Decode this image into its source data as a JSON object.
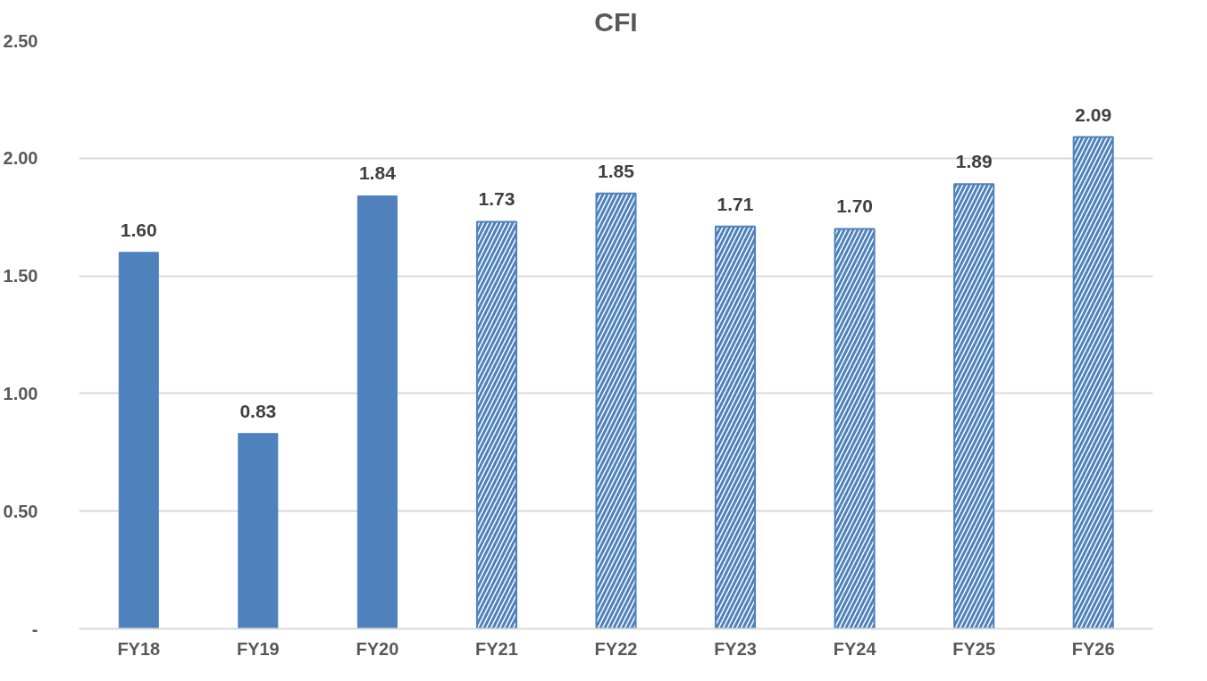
{
  "chart_data": {
    "type": "bar",
    "title": "CFI",
    "categories": [
      "FY18",
      "FY19",
      "FY20",
      "FY21",
      "FY22",
      "FY23",
      "FY24",
      "FY25",
      "FY26"
    ],
    "series": [
      {
        "color": "#4f81bd",
        "values": [
          1.6,
          0.83,
          1.84,
          null,
          null,
          null,
          null,
          null,
          null
        ],
        "value_labels": [
          "1.60",
          "0.83",
          "1.84",
          null,
          null,
          null,
          null,
          null,
          null
        ]
      },
      {
        "color": "#4f81bd",
        "values": [
          null,
          null,
          null,
          1.73,
          1.85,
          1.71,
          1.7,
          1.89,
          2.09
        ],
        "value_labels": [
          null,
          null,
          null,
          "1.73",
          "1.85",
          "1.71",
          "1.70",
          "1.89",
          "2.09"
        ]
      }
    ],
    "ylim": [
      0,
      2.5
    ],
    "yticks": [
      {
        "value": 0,
        "label": "-"
      },
      {
        "value": 0.5,
        "label": "0.50"
      },
      {
        "value": 1,
        "label": "1.00"
      },
      {
        "value": 1.5,
        "label": "1.50"
      },
      {
        "value": 2,
        "label": "2.00"
      },
      {
        "value": 2.5,
        "label": "2.50"
      }
    ],
    "grid": "y"
  }
}
